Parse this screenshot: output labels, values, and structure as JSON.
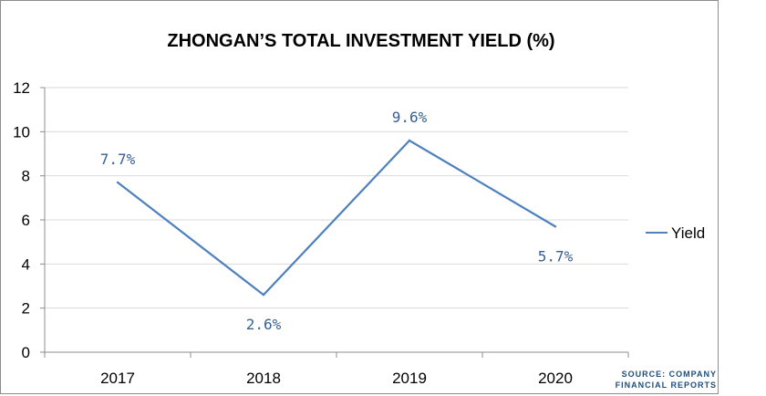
{
  "chart_data": {
    "type": "line",
    "title": "ZHONGAN’S TOTAL INVESTMENT YIELD (%)",
    "categories": [
      "2017",
      "2018",
      "2019",
      "2020"
    ],
    "series": [
      {
        "name": "Yield",
        "values": [
          7.7,
          2.6,
          9.6,
          5.7
        ]
      }
    ],
    "data_labels": [
      "7.7%",
      "2.6%",
      "9.6%",
      "5.7%"
    ],
    "ylim": [
      0,
      12
    ],
    "yticks": [
      "0",
      "2",
      "4",
      "6",
      "8",
      "10",
      "12"
    ],
    "grid": true,
    "legend": "right",
    "source": [
      "SOURCE: COMPANY",
      "FINANCIAL REPORTS"
    ],
    "colors": {
      "line": "#4f81bd",
      "label": "#376092",
      "grid": "#d9d9d9",
      "source": "#1f4e79"
    }
  }
}
